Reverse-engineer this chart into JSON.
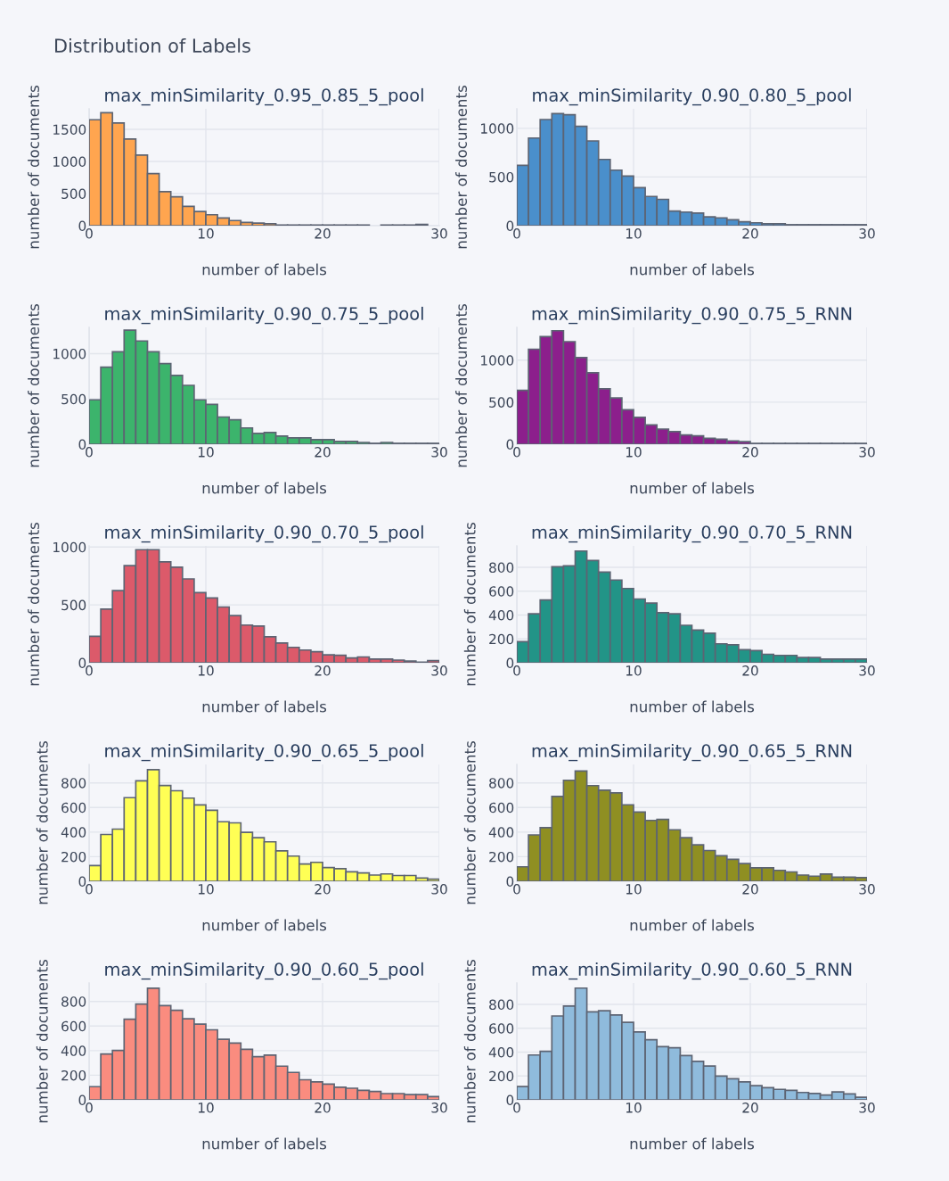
{
  "chart_data": [
    {
      "type": "other",
      "title": "Distribution of Labels"
    },
    {
      "type": "histogram",
      "title": "max_minSimilarity_0.95_0.85_5_pool",
      "xlabel": "number of labels",
      "ylabel": "number of documents",
      "color": "#ffa54f",
      "grid": true,
      "xlim": [
        0,
        30
      ],
      "xticks": [
        0,
        10,
        20,
        30
      ],
      "ylim": [
        0,
        1820
      ],
      "yticks": [
        0,
        500,
        1000,
        1500
      ],
      "bins": [
        0,
        1,
        2,
        3,
        4,
        5,
        6,
        7,
        8,
        9,
        10,
        11,
        12,
        13,
        14,
        15,
        16,
        17,
        18,
        19,
        20,
        21,
        22,
        23,
        24,
        25,
        26,
        27,
        28,
        29,
        30
      ],
      "values": [
        1650,
        1760,
        1600,
        1350,
        1100,
        810,
        530,
        450,
        300,
        220,
        170,
        120,
        80,
        50,
        40,
        30,
        10,
        10,
        10,
        10,
        10,
        10,
        10,
        10,
        0,
        10,
        10,
        10,
        20,
        0
      ]
    },
    {
      "type": "histogram",
      "title": "max_minSimilarity_0.90_0.80_5_pool",
      "xlabel": "number of labels",
      "ylabel": "number of documents",
      "color": "#4a8fcb",
      "grid": true,
      "xlim": [
        0,
        30
      ],
      "xticks": [
        0,
        10,
        20,
        30
      ],
      "ylim": [
        0,
        1200
      ],
      "yticks": [
        0,
        500,
        1000
      ],
      "bins": [
        0,
        1,
        2,
        3,
        4,
        5,
        6,
        7,
        8,
        9,
        10,
        11,
        12,
        13,
        14,
        15,
        16,
        17,
        18,
        19,
        20,
        21,
        22,
        23,
        24,
        25,
        26,
        27,
        28,
        29,
        30
      ],
      "values": [
        620,
        900,
        1090,
        1150,
        1140,
        1020,
        870,
        680,
        570,
        510,
        390,
        300,
        270,
        150,
        140,
        130,
        90,
        80,
        60,
        40,
        30,
        20,
        20,
        10,
        10,
        10,
        10,
        10,
        10,
        10
      ]
    },
    {
      "type": "histogram",
      "title": "max_minSimilarity_0.90_0.75_5_pool",
      "xlabel": "number of labels",
      "ylabel": "number of documents",
      "color": "#3cb46c",
      "grid": true,
      "xlim": [
        0,
        30
      ],
      "xticks": [
        0,
        10,
        20,
        30
      ],
      "ylim": [
        0,
        1290
      ],
      "yticks": [
        0,
        500,
        1000
      ],
      "bins": [
        0,
        1,
        2,
        3,
        4,
        5,
        6,
        7,
        8,
        9,
        10,
        11,
        12,
        13,
        14,
        15,
        16,
        17,
        18,
        19,
        20,
        21,
        22,
        23,
        24,
        25,
        26,
        27,
        28,
        29,
        30
      ],
      "values": [
        490,
        850,
        1020,
        1260,
        1140,
        1020,
        890,
        760,
        650,
        490,
        440,
        300,
        270,
        180,
        120,
        130,
        90,
        70,
        70,
        50,
        50,
        30,
        30,
        20,
        10,
        20,
        10,
        10,
        10,
        10
      ]
    },
    {
      "type": "histogram",
      "title": "max_minSimilarity_0.90_0.75_5_RNN",
      "xlabel": "number of labels",
      "ylabel": "number of documents",
      "color": "#8c1f8c",
      "grid": true,
      "xlim": [
        0,
        30
      ],
      "xticks": [
        0,
        10,
        20,
        30
      ],
      "ylim": [
        0,
        1390
      ],
      "yticks": [
        0,
        500,
        1000
      ],
      "bins": [
        0,
        1,
        2,
        3,
        4,
        5,
        6,
        7,
        8,
        9,
        10,
        11,
        12,
        13,
        14,
        15,
        16,
        17,
        18,
        19,
        20,
        21,
        22,
        23,
        24,
        25,
        26,
        27,
        28,
        29,
        30
      ],
      "values": [
        640,
        1130,
        1280,
        1350,
        1220,
        1030,
        850,
        660,
        550,
        410,
        320,
        230,
        180,
        150,
        110,
        100,
        70,
        60,
        40,
        30,
        10,
        10,
        10,
        10,
        10,
        10,
        10,
        10,
        10,
        10
      ]
    },
    {
      "type": "histogram",
      "title": "max_minSimilarity_0.90_0.70_5_pool",
      "xlabel": "number of labels",
      "ylabel": "number of documents",
      "color": "#dc5a6a",
      "grid": true,
      "xlim": [
        0,
        30
      ],
      "xticks": [
        0,
        10,
        20,
        30
      ],
      "ylim": [
        0,
        1010
      ],
      "yticks": [
        0,
        500,
        1000
      ],
      "bins": [
        0,
        1,
        2,
        3,
        4,
        5,
        6,
        7,
        8,
        9,
        10,
        11,
        12,
        13,
        14,
        15,
        16,
        17,
        18,
        19,
        20,
        21,
        22,
        23,
        24,
        25,
        26,
        27,
        28,
        29,
        30
      ],
      "values": [
        229,
        463,
        624,
        839,
        977,
        977,
        872,
        826,
        725,
        606,
        560,
        482,
        408,
        326,
        317,
        225,
        170,
        133,
        110,
        96,
        69,
        64,
        41,
        50,
        32,
        32,
        23,
        14,
        5,
        18
      ]
    },
    {
      "type": "histogram",
      "title": "max_minSimilarity_0.90_0.70_5_RNN",
      "xlabel": "number of labels",
      "ylabel": "number of documents",
      "color": "#229487",
      "grid": true,
      "xlim": [
        0,
        30
      ],
      "xticks": [
        0,
        10,
        20,
        30
      ],
      "ylim": [
        0,
        980
      ],
      "yticks": [
        0,
        200,
        400,
        600,
        800
      ],
      "bins": [
        0,
        1,
        2,
        3,
        4,
        5,
        6,
        7,
        8,
        9,
        10,
        11,
        12,
        13,
        14,
        15,
        16,
        17,
        18,
        19,
        20,
        21,
        22,
        23,
        24,
        25,
        26,
        27,
        28,
        29,
        30
      ],
      "values": [
        177,
        411,
        526,
        805,
        813,
        937,
        858,
        760,
        694,
        623,
        535,
        500,
        420,
        411,
        314,
        274,
        248,
        159,
        150,
        110,
        102,
        71,
        62,
        62,
        44,
        44,
        31,
        31,
        31,
        31
      ]
    },
    {
      "type": "histogram",
      "title": "max_minSimilarity_0.90_0.65_5_pool",
      "xlabel": "number of labels",
      "ylabel": "number of documents",
      "color": "#ffff55",
      "grid": true,
      "xlim": [
        0,
        30
      ],
      "xticks": [
        0,
        10,
        20,
        30
      ],
      "ylim": [
        0,
        950
      ],
      "yticks": [
        0,
        200,
        400,
        600,
        800
      ],
      "bins": [
        0,
        1,
        2,
        3,
        4,
        5,
        6,
        7,
        8,
        9,
        10,
        11,
        12,
        13,
        14,
        15,
        16,
        17,
        18,
        19,
        20,
        21,
        22,
        23,
        24,
        25,
        26,
        27,
        28,
        29,
        30
      ],
      "values": [
        128,
        381,
        424,
        680,
        817,
        907,
        779,
        736,
        676,
        621,
        578,
        484,
        475,
        398,
        355,
        321,
        248,
        205,
        141,
        154,
        111,
        103,
        77,
        68,
        51,
        60,
        47,
        47,
        26,
        17
      ]
    },
    {
      "type": "histogram",
      "title": "max_minSimilarity_0.90_0.65_5_RNN",
      "xlabel": "number of labels",
      "ylabel": "number of documents",
      "color": "#8f8f22",
      "grid": true,
      "xlim": [
        0,
        30
      ],
      "xticks": [
        0,
        10,
        20,
        30
      ],
      "ylim": [
        0,
        950
      ],
      "yticks": [
        0,
        200,
        400,
        600,
        800
      ],
      "bins": [
        0,
        1,
        2,
        3,
        4,
        5,
        6,
        7,
        8,
        9,
        10,
        11,
        12,
        13,
        14,
        15,
        16,
        17,
        18,
        19,
        20,
        21,
        22,
        23,
        24,
        25,
        26,
        27,
        28,
        29,
        30
      ],
      "values": [
        118,
        377,
        436,
        690,
        821,
        897,
        778,
        740,
        719,
        622,
        563,
        495,
        503,
        419,
        355,
        296,
        250,
        207,
        178,
        144,
        110,
        110,
        89,
        76,
        51,
        42,
        59,
        34,
        34,
        30
      ]
    },
    {
      "type": "histogram",
      "title": "max_minSimilarity_0.90_0.60_5_pool",
      "xlabel": "number of labels",
      "ylabel": "number of documents",
      "color": "#fa8c7f",
      "grid": true,
      "xlim": [
        0,
        30
      ],
      "xticks": [
        0,
        10,
        20,
        30
      ],
      "ylim": [
        0,
        950
      ],
      "yticks": [
        0,
        200,
        400,
        600,
        800
      ],
      "bins": [
        0,
        1,
        2,
        3,
        4,
        5,
        6,
        7,
        8,
        9,
        10,
        11,
        12,
        13,
        14,
        15,
        16,
        17,
        18,
        19,
        20,
        21,
        22,
        23,
        24,
        25,
        26,
        27,
        28,
        29,
        30
      ],
      "values": [
        107,
        372,
        402,
        655,
        779,
        907,
        766,
        728,
        659,
        616,
        569,
        492,
        462,
        411,
        351,
        364,
        274,
        223,
        163,
        146,
        128,
        103,
        94,
        77,
        68,
        51,
        51,
        43,
        43,
        26
      ]
    },
    {
      "type": "histogram",
      "title": "max_minSimilarity_0.90_0.60_5_RNN",
      "xlabel": "number of labels",
      "ylabel": "number of documents",
      "color": "#8fbbdc",
      "grid": true,
      "xlim": [
        0,
        30
      ],
      "xticks": [
        0,
        10,
        20,
        30
      ],
      "ylim": [
        0,
        980
      ],
      "yticks": [
        0,
        200,
        400,
        600,
        800
      ],
      "bins": [
        0,
        1,
        2,
        3,
        4,
        5,
        6,
        7,
        8,
        9,
        10,
        11,
        12,
        13,
        14,
        15,
        16,
        17,
        18,
        19,
        20,
        21,
        22,
        23,
        24,
        25,
        26,
        27,
        28,
        29,
        30
      ],
      "values": [
        111,
        376,
        407,
        703,
        787,
        937,
        738,
        747,
        712,
        650,
        570,
        504,
        446,
        437,
        371,
        323,
        283,
        199,
        177,
        150,
        119,
        102,
        88,
        80,
        62,
        53,
        40,
        66,
        49,
        22
      ]
    }
  ]
}
